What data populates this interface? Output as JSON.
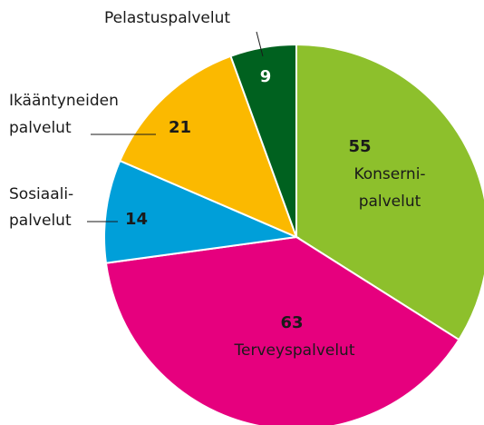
{
  "chart_data": {
    "type": "pie",
    "categories": [
      [
        "Konserni-",
        "palvelut"
      ],
      [
        "Terveyspalvelut"
      ],
      [
        "Sosiaali-",
        "palvelut"
      ],
      [
        "Ikääntyneiden",
        "palvelut"
      ],
      [
        "Pelastuspalvelut"
      ]
    ],
    "values": [
      55,
      63,
      14,
      21,
      9
    ],
    "colors": [
      "#8dc02c",
      "#e6007e",
      "#009fd9",
      "#fbb900",
      "#00611f"
    ]
  }
}
